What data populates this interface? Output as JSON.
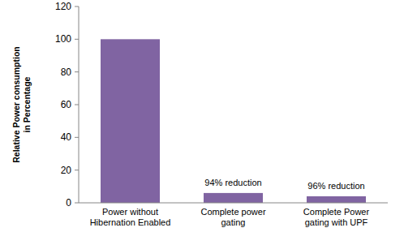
{
  "chart_data": {
    "type": "bar",
    "y_label": "Relative Power consumption in Percentage",
    "categories": [
      "Power without Hibernation Enabled",
      "Complete power gating",
      "Complete Power gating with UPF"
    ],
    "values": [
      100,
      6,
      4
    ],
    "color": "#8064a2",
    "ylim": [
      0,
      120
    ],
    "yticks": [
      0,
      20,
      40,
      60,
      80,
      100,
      120
    ],
    "grid": false,
    "annotations": [
      {
        "x": "Complete power gating",
        "text": "94% reduction"
      },
      {
        "x": "Complete Power gating with UPF",
        "text": "96% reduction"
      }
    ]
  }
}
